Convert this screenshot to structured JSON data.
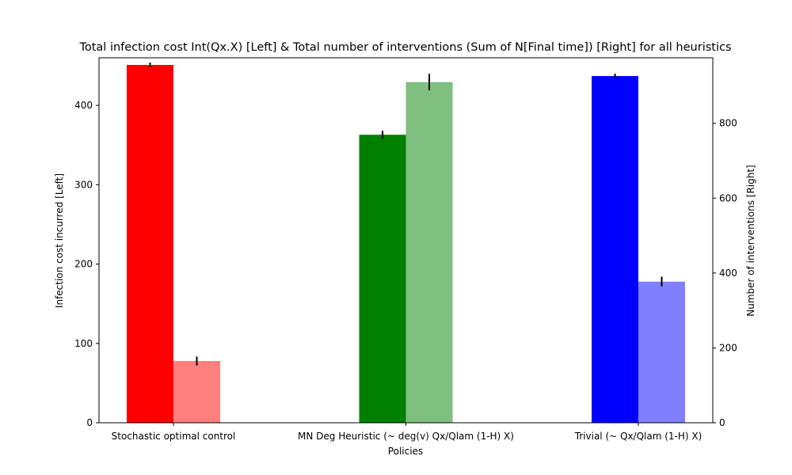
{
  "chart_data": {
    "type": "bar",
    "title": "Total infection cost Int(Qx.X) [Left] & Total number of interventions (Sum of N[Final time]) [Right] for all heuristics",
    "xlabel": "Policies",
    "ylabel_left": "Infection cost incurred [Left]",
    "ylabel_right": "Number of interventions [Right]",
    "ylim_left": [
      0,
      460
    ],
    "ylim_right": [
      0,
      975
    ],
    "yticks_left": [
      0,
      100,
      200,
      300,
      400
    ],
    "yticks_right": [
      0,
      200,
      400,
      600,
      800
    ],
    "grid": false,
    "categories": [
      "Stochastic optimal control",
      "MN Deg Heuristic (~ deg(v) Qx/Qlam (1-H) X)",
      "Trivial (~ Qx/Qlam (1-H) X)"
    ],
    "series": [
      {
        "axis": "left",
        "values": [
          451,
          363,
          437
        ],
        "errors": [
          3,
          5,
          3
        ],
        "colors": [
          "#ff0000",
          "#008000",
          "#0000ff"
        ],
        "opacity": 1.0
      },
      {
        "axis": "right",
        "values": [
          165,
          910,
          377
        ],
        "errors": [
          12,
          22,
          13
        ],
        "colors": [
          "#ff0000",
          "#008000",
          "#0000ff"
        ],
        "opacity": 0.5
      }
    ]
  }
}
